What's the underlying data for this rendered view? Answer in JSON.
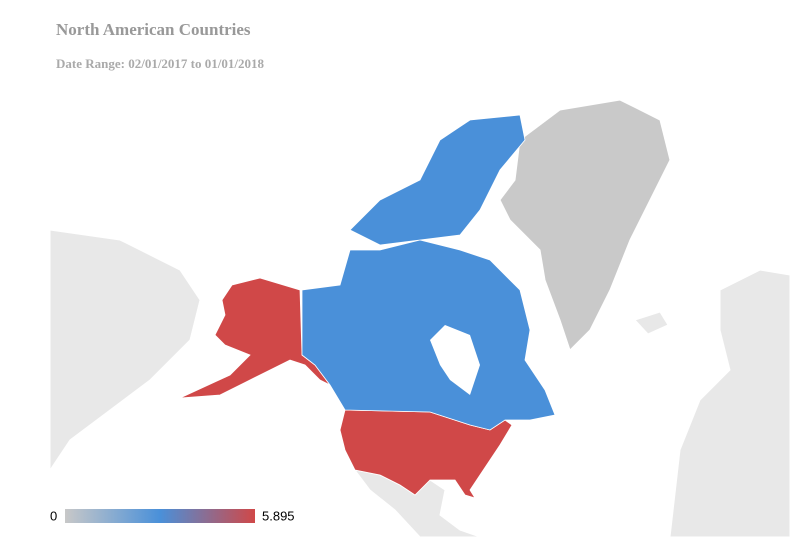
{
  "chart_data": {
    "type": "choropleth",
    "title": "North American Countries",
    "subtitle": "Date Range: 02/01/2017 to 01/01/2018",
    "categories": [
      null,
      null
    ],
    "values": [
      5.895,
      2.95
    ],
    "colorlim": [
      0,
      5.895
    ],
    "colors": [
      "#c8c8c8",
      "#4a90d9",
      "#d04848"
    ]
  }
}
